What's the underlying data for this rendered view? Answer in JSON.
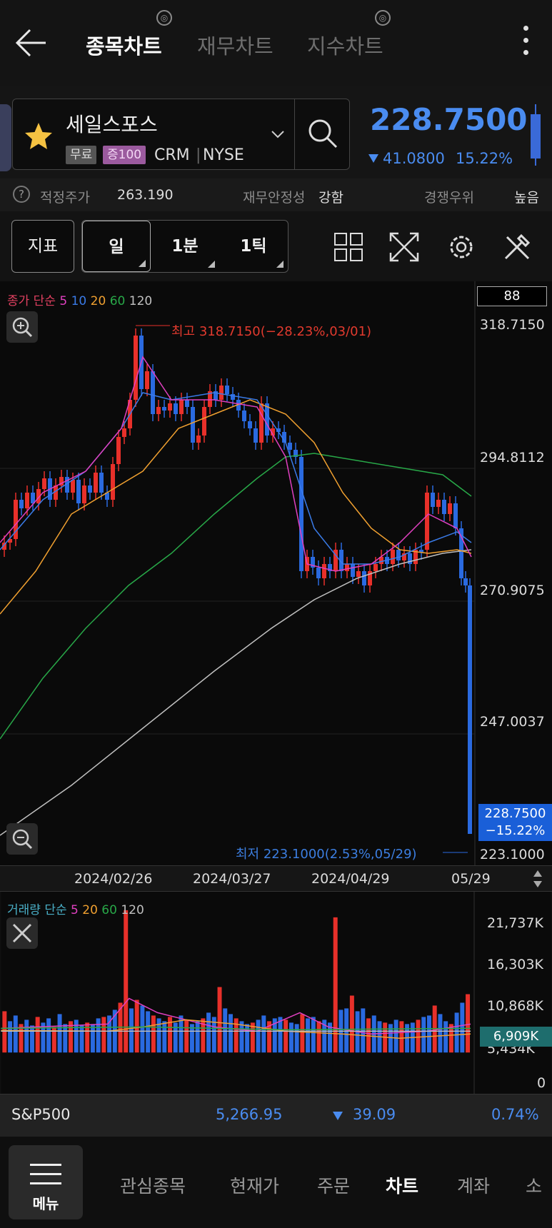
{
  "header": {
    "tabs": [
      {
        "label": "종목차트",
        "active": true
      },
      {
        "label": "재무차트",
        "active": false
      },
      {
        "label": "지수차트",
        "active": false
      }
    ]
  },
  "stock": {
    "name": "세일스포스",
    "chip_free": "무료",
    "chip_margin": "증100",
    "ticker": "CRM",
    "exchange": "NYSE",
    "price": "228.7500",
    "change": "41.0800",
    "change_pct": "15.22%",
    "change_color": "#4a8cf0"
  },
  "info": {
    "fair_price_label": "적정주가",
    "fair_price_value": "263.190",
    "stability_label": "재무안정성",
    "stability_value": "강함",
    "competitive_label": "경쟁우위",
    "competitive_value": "높음"
  },
  "toolbar": {
    "indicator_label": "지표",
    "periods": [
      "일",
      "1분",
      "1틱"
    ],
    "selected_period": "일"
  },
  "chart": {
    "legend": {
      "title": "종가 단순",
      "periods": [
        "5",
        "10",
        "20",
        "60",
        "120"
      ],
      "colors": [
        "#e040c0",
        "#3a7be8",
        "#f0a030",
        "#28a848",
        "#c0c0c0"
      ]
    },
    "last_box": "88",
    "axis_labels": [
      "318.7150",
      "294.8112",
      "270.9075",
      "247.0037",
      "223.1000"
    ],
    "price_tag_value": "228.7500",
    "price_tag_pct": "−15.22%",
    "high_note": "최고 318.7150(−28.23%,03/01)",
    "low_note": "최저 223.1000(2.53%,05/29)",
    "x_labels": [
      "2024/02/26",
      "2024/03/27",
      "2024/04/29",
      "05/29"
    ],
    "up_color": "#e8302a",
    "down_color": "#2a6ae0"
  },
  "volume": {
    "legend_title": "거래량 단순",
    "periods": [
      "5",
      "20",
      "60",
      "120"
    ],
    "colors": [
      "#e040c0",
      "#f0a030",
      "#28a848",
      "#c0c0c0"
    ],
    "axis_labels": [
      "21,737K",
      "16,303K",
      "10,868K",
      "5,434K",
      "0"
    ],
    "tag_value": "6,909K"
  },
  "index_bar": {
    "name": "S&P500",
    "value": "5,266.95",
    "change": "39.09",
    "change_pct": "0.74%"
  },
  "bottom_nav": {
    "menu_label": "메뉴",
    "items": [
      {
        "label": "관심종목",
        "active": false
      },
      {
        "label": "현재가",
        "active": false
      },
      {
        "label": "주문",
        "active": false
      },
      {
        "label": "차트",
        "active": true
      },
      {
        "label": "계좌",
        "active": false
      },
      {
        "label": "소",
        "active": false
      }
    ]
  }
}
